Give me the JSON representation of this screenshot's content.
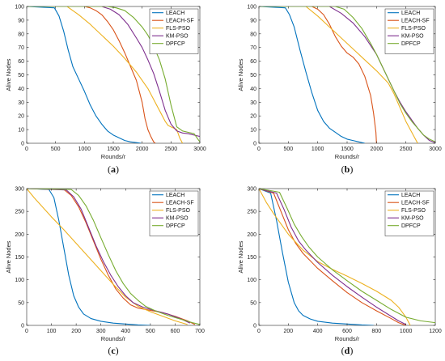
{
  "colors": {
    "LEACH": "#0072BD",
    "LEACH-SF": "#D95319",
    "FLS-PSO": "#EDB120",
    "KM-PSO": "#7E2F8E",
    "DPFCP": "#77AC30"
  },
  "chart_data": [
    {
      "type": "line",
      "caption_open": "(",
      "caption_letter": "a",
      "caption_close": ")",
      "xlabel": "Rounds/r",
      "ylabel": "Alive Nodes",
      "xlim": [
        0,
        3000
      ],
      "ylim": [
        0,
        100
      ],
      "xticks": [
        0,
        500,
        1000,
        1500,
        2000,
        2500,
        3000
      ],
      "yticks": [
        0,
        10,
        20,
        30,
        40,
        50,
        60,
        70,
        80,
        90,
        100
      ],
      "legend_position": "top-right",
      "series": [
        {
          "name": "LEACH",
          "x": [
            0,
            480,
            560,
            640,
            720,
            800,
            900,
            1000,
            1100,
            1200,
            1300,
            1400,
            1500,
            1600,
            1700,
            1800,
            1900,
            1980
          ],
          "y": [
            100,
            99,
            93,
            82,
            68,
            56,
            47,
            38,
            28,
            20,
            14,
            9,
            6,
            4,
            2,
            1,
            0.5,
            0
          ]
        },
        {
          "name": "LEACH-SF",
          "x": [
            0,
            1000,
            1100,
            1200,
            1300,
            1400,
            1500,
            1600,
            1700,
            1800,
            1900,
            2000,
            2050,
            2100,
            2150,
            2200,
            2230
          ],
          "y": [
            100,
            100,
            99,
            97,
            94,
            89,
            83,
            75,
            66,
            56,
            46,
            30,
            18,
            10,
            5,
            1,
            0
          ]
        },
        {
          "name": "FLS-PSO",
          "x": [
            0,
            700,
            900,
            1100,
            1300,
            1500,
            1700,
            1900,
            2000,
            2100,
            2200,
            2300,
            2400,
            2450,
            2500,
            2550,
            2600,
            2650,
            2700
          ],
          "y": [
            100,
            100,
            94,
            87,
            79,
            71,
            62,
            52,
            46,
            40,
            32,
            24,
            16,
            13,
            12,
            11,
            10,
            4,
            0
          ]
        },
        {
          "name": "KM-PSO",
          "x": [
            0,
            1300,
            1450,
            1600,
            1750,
            1900,
            2000,
            2100,
            2200,
            2300,
            2400,
            2500,
            2600,
            2700,
            2800,
            2900,
            3000
          ],
          "y": [
            100,
            100,
            98,
            94,
            87,
            77,
            70,
            61,
            51,
            38,
            24,
            14,
            9,
            7.5,
            7,
            6,
            5
          ]
        },
        {
          "name": "DPFCP",
          "x": [
            0,
            1400,
            1550,
            1700,
            1850,
            2000,
            2100,
            2200,
            2300,
            2400,
            2500,
            2600,
            2700,
            2800,
            2900,
            3000
          ],
          "y": [
            100,
            100,
            99,
            97,
            92,
            85,
            79,
            71,
            61,
            47,
            28,
            12,
            9,
            8,
            7,
            1
          ]
        }
      ]
    },
    {
      "type": "line",
      "caption_open": "(",
      "caption_letter": "b",
      "caption_close": ")",
      "xlabel": "Rounds/r",
      "ylabel": "Alive Nodes",
      "xlim": [
        0,
        3000
      ],
      "ylim": [
        0,
        100
      ],
      "xticks": [
        0,
        500,
        1000,
        1500,
        2000,
        2500,
        3000
      ],
      "yticks": [
        0,
        10,
        20,
        30,
        40,
        50,
        60,
        70,
        80,
        90,
        100
      ],
      "legend_position": "top-right",
      "series": [
        {
          "name": "LEACH",
          "x": [
            0,
            450,
            520,
            600,
            700,
            800,
            900,
            1000,
            1100,
            1200,
            1300,
            1400,
            1500,
            1600,
            1700,
            1800
          ],
          "y": [
            100,
            99,
            94,
            85,
            68,
            52,
            37,
            24,
            16,
            11,
            8,
            5,
            3,
            2,
            1,
            0
          ]
        },
        {
          "name": "LEACH-SF",
          "x": [
            0,
            900,
            1000,
            1100,
            1200,
            1300,
            1400,
            1500,
            1600,
            1700,
            1800,
            1900,
            1950,
            1990,
            2000
          ],
          "y": [
            100,
            100,
            98,
            94,
            87,
            78,
            71,
            66,
            63,
            58,
            49,
            35,
            22,
            8,
            0
          ]
        },
        {
          "name": "FLS-PSO",
          "x": [
            0,
            800,
            1000,
            1200,
            1400,
            1600,
            1800,
            2000,
            2200,
            2300,
            2400,
            2500,
            2600,
            2700
          ],
          "y": [
            100,
            100,
            93,
            85,
            77,
            69,
            61,
            53,
            44,
            36,
            26,
            16,
            8,
            0
          ]
        },
        {
          "name": "KM-PSO",
          "x": [
            0,
            1200,
            1400,
            1600,
            1800,
            2000,
            2100,
            2200,
            2300,
            2400,
            2500,
            2600,
            2700,
            2800,
            2900,
            3000
          ],
          "y": [
            100,
            100,
            95,
            88,
            78,
            65,
            56,
            47,
            38,
            30,
            23,
            17,
            11,
            6,
            2,
            0.5
          ]
        },
        {
          "name": "DPFCP",
          "x": [
            0,
            1300,
            1450,
            1600,
            1750,
            1900,
            2000,
            2100,
            2200,
            2300,
            2400,
            2500,
            2600,
            2700,
            2800,
            2900,
            3000
          ],
          "y": [
            100,
            100,
            98,
            92,
            84,
            73,
            65,
            56,
            47,
            38,
            29,
            22,
            16,
            11,
            6,
            3,
            1
          ]
        }
      ]
    },
    {
      "type": "line",
      "caption_open": "(",
      "caption_letter": "c",
      "caption_close": ")",
      "xlabel": "Rounds/r",
      "ylabel": "Alive Nodes",
      "xlim": [
        0,
        700
      ],
      "ylim": [
        0,
        300
      ],
      "xticks": [
        0,
        100,
        200,
        300,
        400,
        500,
        600,
        700
      ],
      "yticks": [
        0,
        50,
        100,
        150,
        200,
        250,
        300
      ],
      "legend_position": "top-right",
      "series": [
        {
          "name": "LEACH",
          "x": [
            0,
            90,
            110,
            130,
            150,
            170,
            190,
            210,
            230,
            260,
            300,
            350,
            400,
            450,
            500
          ],
          "y": [
            300,
            298,
            280,
            230,
            170,
            110,
            65,
            40,
            25,
            15,
            9,
            5,
            3,
            1,
            0
          ]
        },
        {
          "name": "LEACH-SF",
          "x": [
            0,
            150,
            180,
            210,
            240,
            270,
            300,
            330,
            360,
            390,
            420,
            450,
            500,
            550,
            600,
            650,
            680
          ],
          "y": [
            300,
            298,
            285,
            260,
            225,
            185,
            145,
            110,
            80,
            60,
            45,
            38,
            33,
            28,
            20,
            10,
            2
          ]
        },
        {
          "name": "FLS-PSO",
          "x": [
            0,
            30,
            60,
            100,
            150,
            200,
            250,
            300,
            350,
            400,
            450,
            500,
            550,
            600,
            650
          ],
          "y": [
            300,
            280,
            262,
            238,
            210,
            180,
            150,
            120,
            90,
            62,
            42,
            30,
            20,
            10,
            2
          ]
        },
        {
          "name": "KM-PSO",
          "x": [
            0,
            160,
            190,
            220,
            250,
            280,
            310,
            340,
            370,
            400,
            430,
            470,
            520,
            570,
            620,
            660
          ],
          "y": [
            300,
            297,
            282,
            255,
            215,
            175,
            140,
            110,
            85,
            65,
            50,
            40,
            32,
            25,
            15,
            5
          ]
        },
        {
          "name": "DPFCP",
          "x": [
            0,
            180,
            210,
            240,
            270,
            300,
            330,
            360,
            390,
            420,
            450,
            480,
            520,
            570,
            620,
            670,
            700
          ],
          "y": [
            300,
            298,
            285,
            262,
            230,
            192,
            155,
            120,
            92,
            70,
            55,
            42,
            32,
            22,
            14,
            6,
            2
          ]
        }
      ]
    },
    {
      "type": "line",
      "caption_open": "(",
      "caption_letter": "d",
      "caption_close": ")",
      "xlabel": "Rounds/r",
      "ylabel": "Alive Nodes",
      "xlim": [
        0,
        1200
      ],
      "ylim": [
        0,
        300
      ],
      "xticks": [
        0,
        200,
        400,
        600,
        800,
        1000,
        1200
      ],
      "yticks": [
        0,
        50,
        100,
        150,
        200,
        250,
        300
      ],
      "legend_position": "top-right",
      "series": [
        {
          "name": "LEACH",
          "x": [
            0,
            80,
            120,
            160,
            200,
            240,
            270,
            300,
            350,
            400,
            500,
            600,
            700,
            780
          ],
          "y": [
            300,
            290,
            230,
            160,
            95,
            50,
            32,
            22,
            14,
            9,
            5,
            3,
            1,
            0
          ]
        },
        {
          "name": "LEACH-SF",
          "x": [
            0,
            100,
            150,
            200,
            250,
            300,
            400,
            500,
            600,
            700,
            800,
            900,
            950,
            1000
          ],
          "y": [
            300,
            290,
            250,
            210,
            180,
            158,
            125,
            98,
            72,
            50,
            32,
            15,
            6,
            0
          ]
        },
        {
          "name": "FLS-PSO",
          "x": [
            0,
            50,
            100,
            200,
            300,
            400,
            500,
            600,
            700,
            800,
            900,
            950,
            1000,
            1030
          ],
          "y": [
            300,
            270,
            245,
            200,
            165,
            140,
            123,
            108,
            92,
            75,
            55,
            40,
            18,
            0
          ]
        },
        {
          "name": "KM-PSO",
          "x": [
            0,
            120,
            170,
            220,
            270,
            320,
            400,
            500,
            600,
            700,
            800,
            900,
            950,
            1000
          ],
          "y": [
            300,
            290,
            255,
            215,
            185,
            165,
            138,
            110,
            85,
            62,
            40,
            20,
            10,
            2
          ]
        },
        {
          "name": "DPFCP",
          "x": [
            0,
            140,
            190,
            240,
            290,
            340,
            400,
            500,
            600,
            700,
            800,
            900,
            1000,
            1100,
            1200
          ],
          "y": [
            300,
            292,
            258,
            222,
            195,
            172,
            150,
            122,
            98,
            75,
            55,
            35,
            18,
            10,
            6
          ]
        }
      ]
    }
  ]
}
